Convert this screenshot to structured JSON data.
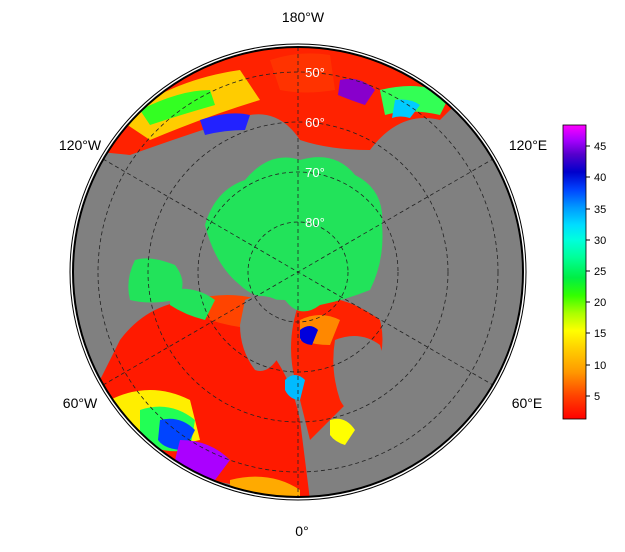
{
  "map": {
    "projection": "north-polar-stereographic",
    "land_color": "#808080",
    "ocean_ice_color": "#22e35a",
    "longitude_labels": [
      "180°W",
      "120°E",
      "60°E",
      "0°",
      "60°W",
      "120°W"
    ],
    "latitude_labels": [
      "50°",
      "60°",
      "70°",
      "80°"
    ]
  },
  "colorbar": {
    "ticks": [
      "45",
      "40",
      "35",
      "30",
      "25",
      "20",
      "15",
      "10",
      "5"
    ],
    "colors": [
      "#ff0000",
      "#ff4400",
      "#ff8800",
      "#ffcc00",
      "#ffff00",
      "#ccff00",
      "#55ff00",
      "#00ee44",
      "#00ffaa",
      "#00ffff",
      "#00bbff",
      "#0055ff",
      "#0000dd",
      "#5500dd",
      "#aa00ff",
      "#ff00ff"
    ]
  }
}
